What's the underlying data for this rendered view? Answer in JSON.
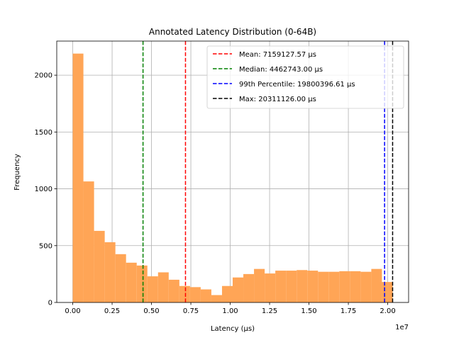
{
  "chart_data": {
    "type": "histogram",
    "title": "Annotated Latency Distribution (0-64B)",
    "xlabel": "Latency (µs)",
    "ylabel": "Frequency",
    "x_offset_label": "1e7",
    "x_scale": 10000000,
    "xlim": [
      -1015000,
      21326000
    ],
    "ylim": [
      0,
      2300
    ],
    "grid": true,
    "x_ticks": [
      0,
      0.25,
      0.5,
      0.75,
      1.0,
      1.25,
      1.5,
      1.75,
      2.0
    ],
    "x_tick_labels": [
      "0.00",
      "0.25",
      "0.50",
      "0.75",
      "1.00",
      "1.25",
      "1.50",
      "1.75",
      "2.00"
    ],
    "y_ticks": [
      0,
      500,
      1000,
      1500,
      2000
    ],
    "y_tick_labels": [
      "0",
      "500",
      "1000",
      "1500",
      "2000"
    ],
    "bar_color": "#ffa556",
    "bins": {
      "start": 0,
      "width": 677037.5,
      "counts": [
        2190,
        1065,
        630,
        530,
        425,
        350,
        325,
        230,
        265,
        200,
        145,
        135,
        115,
        65,
        145,
        220,
        250,
        295,
        255,
        280,
        280,
        285,
        280,
        270,
        270,
        275,
        275,
        270,
        295,
        180
      ]
    },
    "reference_lines": [
      {
        "name": "Mean",
        "value": 7159127.57,
        "label": "Mean: 7159127.57 µs",
        "color": "#ff0000"
      },
      {
        "name": "Median",
        "value": 4462743.0,
        "label": "Median: 4462743.00 µs",
        "color": "#008000"
      },
      {
        "name": "99th Percentile",
        "value": 19800396.61,
        "label": "99th Percentile: 19800396.61 µs",
        "color": "#0000ff"
      },
      {
        "name": "Max",
        "value": 20311126.0,
        "label": "Max: 20311126.00 µs",
        "color": "#000000"
      }
    ],
    "legend_position": "top-right"
  }
}
